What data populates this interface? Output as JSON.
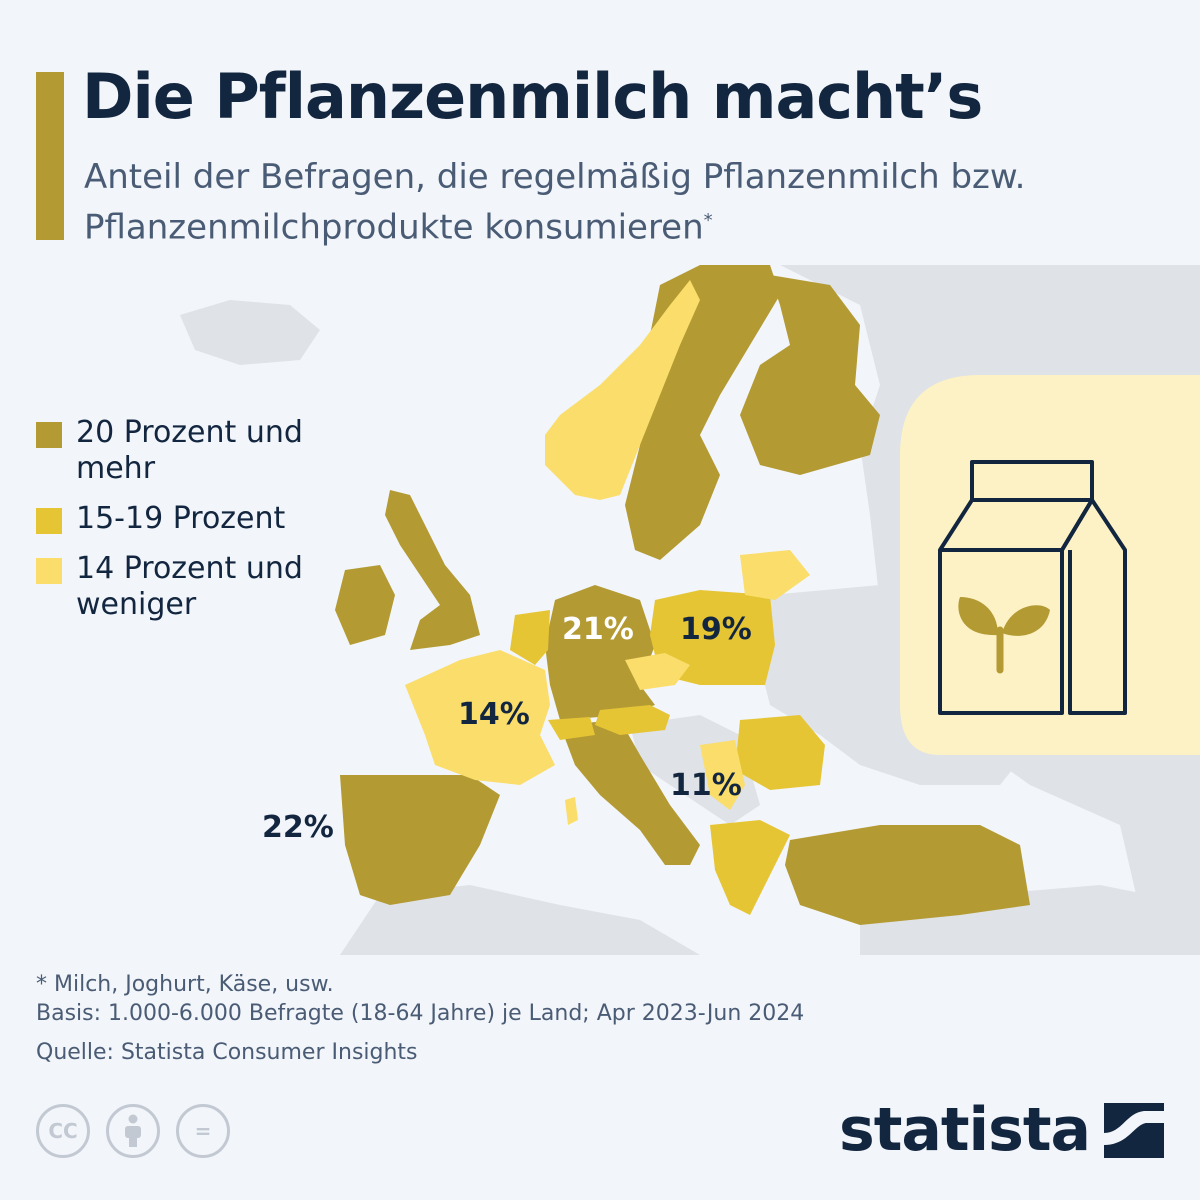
{
  "header": {
    "title": "Die Pflanzenmilch macht’s",
    "subtitle": "Anteil der Befragen, die regelmäßig Pflanzenmilch bzw. Pflanzenmilchprodukte konsumieren",
    "subtitle_marker": "*"
  },
  "legend": [
    {
      "label": "20 Prozent und mehr",
      "color": "#b39a33"
    },
    {
      "label": "15-19 Prozent",
      "color": "#e6c535"
    },
    {
      "label": "14 Prozent und weniger",
      "color": "#fadd6a"
    }
  ],
  "map_labels": {
    "germany": "21%",
    "poland": "19%",
    "france": "14%",
    "spain": "22%",
    "serbia": "11%"
  },
  "colors": {
    "background": "#f2f5f9",
    "land_no_data": "#dfe2e6",
    "high": "#b39a33",
    "mid": "#e6c535",
    "low": "#fadd6a",
    "icon_halo": "#fdf2c5",
    "text": "#13263f"
  },
  "icons": [
    "milk-carton-icon",
    "sprout-icon",
    "cc-icon",
    "attribution-icon",
    "no-derivatives-icon",
    "statista-logo-icon"
  ],
  "footer": {
    "footnote": "* Milch, Joghurt, Käse, usw.",
    "basis": "Basis: 1.000-6.000 Befragte (18-64 Jahre) je Land; Apr 2023-Jun 2024",
    "source": "Quelle: Statista Consumer Insights",
    "logo_text": "statista"
  },
  "cc_badges": {
    "cc": "CC",
    "equals": "="
  }
}
